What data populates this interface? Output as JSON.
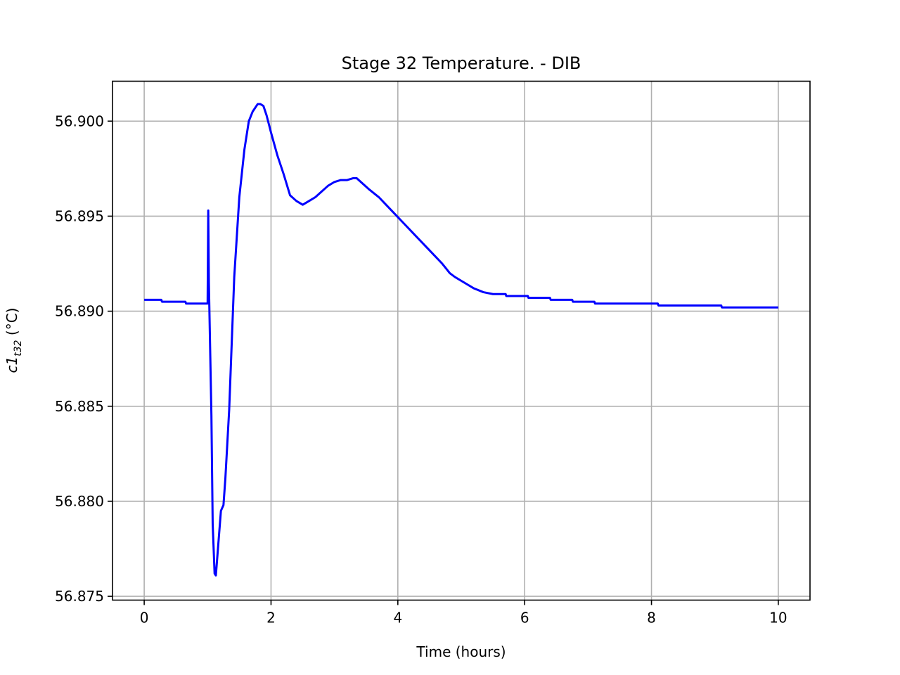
{
  "chart_data": {
    "type": "line",
    "title": "Stage 32 Temperature. - DIB",
    "xlabel": "Time (hours)",
    "ylabel": {
      "base": "c1",
      "subscript": "t32",
      "suffix": " (°C)"
    },
    "xlim": [
      -0.5,
      10.5
    ],
    "ylim": [
      56.8748,
      56.9021
    ],
    "xticks": [
      0,
      2,
      4,
      6,
      8,
      10
    ],
    "xtick_labels": [
      "0",
      "2",
      "4",
      "6",
      "8",
      "10"
    ],
    "yticks": [
      56.875,
      56.88,
      56.885,
      56.89,
      56.895,
      56.9
    ],
    "ytick_labels": [
      "56.875",
      "56.880",
      "56.885",
      "56.890",
      "56.895",
      "56.900"
    ],
    "grid": true,
    "series": [
      {
        "color": "#0000ff",
        "x": [
          0.0,
          0.27,
          0.28,
          0.65,
          0.66,
          1.0,
          1.01,
          1.02,
          1.06,
          1.08,
          1.11,
          1.13,
          1.17,
          1.21,
          1.25,
          1.28,
          1.34,
          1.42,
          1.5,
          1.58,
          1.65,
          1.71,
          1.79,
          1.83,
          1.88,
          1.93,
          2.0,
          2.1,
          2.2,
          2.3,
          2.4,
          2.5,
          2.6,
          2.7,
          2.8,
          2.9,
          3.0,
          3.1,
          3.2,
          3.3,
          3.35,
          3.45,
          3.55,
          3.7,
          3.9,
          4.1,
          4.3,
          4.5,
          4.7,
          4.82,
          4.9,
          5.0,
          5.1,
          5.2,
          5.35,
          5.5,
          5.7,
          5.71,
          6.05,
          6.06,
          6.4,
          6.41,
          6.75,
          6.76,
          7.1,
          7.11,
          8.1,
          8.11,
          9.1,
          9.11,
          10.0
        ],
        "y": [
          56.8906,
          56.8906,
          56.8905,
          56.8905,
          56.8904,
          56.8904,
          56.8953,
          56.8915,
          56.8845,
          56.8788,
          56.8762,
          56.8761,
          56.8778,
          56.8795,
          56.8798,
          56.8812,
          56.8848,
          56.8918,
          56.896,
          56.8985,
          56.9,
          56.9005,
          56.9009,
          56.9009,
          56.9008,
          56.9003,
          56.8994,
          56.8982,
          56.8972,
          56.8961,
          56.8958,
          56.8956,
          56.8958,
          56.896,
          56.8963,
          56.8966,
          56.8968,
          56.8969,
          56.8969,
          56.897,
          56.897,
          56.8967,
          56.8964,
          56.896,
          56.8953,
          56.8946,
          56.8939,
          56.8932,
          56.8925,
          56.892,
          56.8918,
          56.8916,
          56.8914,
          56.8912,
          56.891,
          56.8909,
          56.8909,
          56.8908,
          56.8908,
          56.8907,
          56.8907,
          56.8906,
          56.8906,
          56.8905,
          56.8905,
          56.8904,
          56.8904,
          56.8903,
          56.8903,
          56.8902,
          56.8902
        ]
      }
    ]
  }
}
